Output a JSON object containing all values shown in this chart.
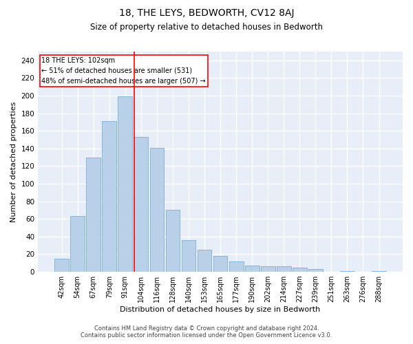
{
  "title": "18, THE LEYS, BEDWORTH, CV12 8AJ",
  "subtitle": "Size of property relative to detached houses in Bedworth",
  "xlabel": "Distribution of detached houses by size in Bedworth",
  "ylabel": "Number of detached properties",
  "bar_color": "#b8d0e8",
  "bar_edge_color": "#7aafd4",
  "background_color": "#e8eef8",
  "grid_color": "#ffffff",
  "categories": [
    "42sqm",
    "54sqm",
    "67sqm",
    "79sqm",
    "91sqm",
    "104sqm",
    "116sqm",
    "128sqm",
    "140sqm",
    "153sqm",
    "165sqm",
    "177sqm",
    "190sqm",
    "202sqm",
    "214sqm",
    "227sqm",
    "239sqm",
    "251sqm",
    "263sqm",
    "276sqm",
    "288sqm"
  ],
  "values": [
    15,
    63,
    130,
    171,
    199,
    153,
    141,
    70,
    36,
    25,
    18,
    12,
    7,
    6,
    6,
    5,
    3,
    0,
    1,
    0,
    1
  ],
  "ylim": [
    0,
    250
  ],
  "yticks": [
    0,
    20,
    40,
    60,
    80,
    100,
    120,
    140,
    160,
    180,
    200,
    220,
    240
  ],
  "marker_label_line1": "18 THE LEYS: 102sqm",
  "marker_label_line2": "← 51% of detached houses are smaller (531)",
  "marker_label_line3": "48% of semi-detached houses are larger (507) →",
  "vline_index": 4.57,
  "footer1": "Contains HM Land Registry data © Crown copyright and database right 2024.",
  "footer2": "Contains public sector information licensed under the Open Government Licence v3.0."
}
